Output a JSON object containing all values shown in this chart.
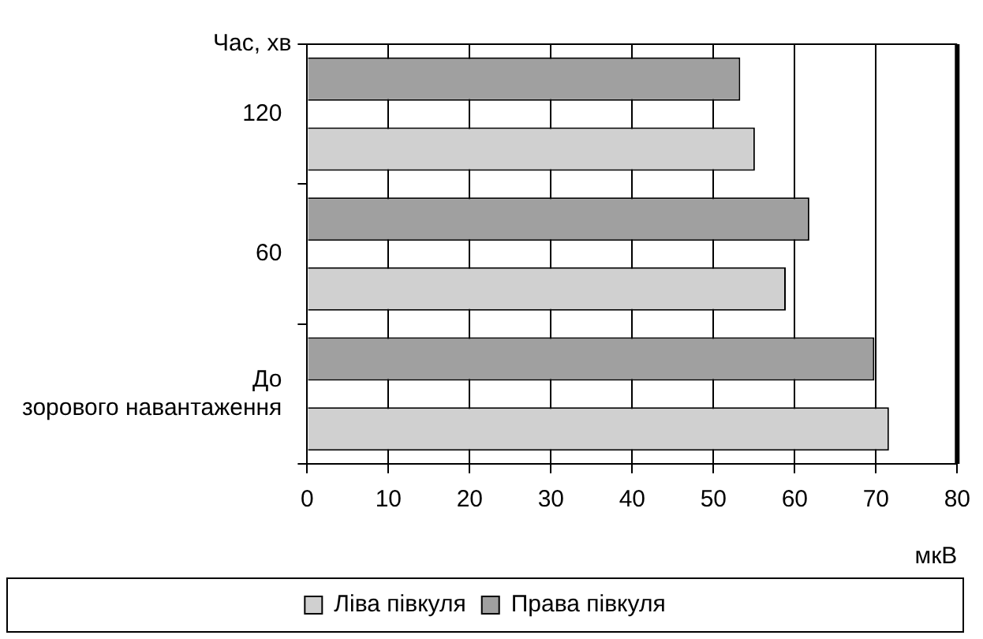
{
  "chart_data": {
    "type": "bar",
    "orientation": "horizontal",
    "ylabel": "Час, хв",
    "xlabel": "мкВ",
    "categories": [
      "120",
      "60",
      "До зорового навантаження"
    ],
    "series": [
      {
        "name": "Права півкуля",
        "color": "#a0a0a0",
        "values": [
          53.3,
          61.8,
          69.8
        ]
      },
      {
        "name": "Ліва півкуля",
        "color": "#d0d0d0",
        "values": [
          55.1,
          58.9,
          71.6
        ]
      }
    ],
    "xlim": [
      0,
      80
    ],
    "xticks": [
      0,
      10,
      20,
      30,
      40,
      50,
      60,
      70,
      80
    ],
    "grid": "x",
    "legend": "bottom"
  }
}
